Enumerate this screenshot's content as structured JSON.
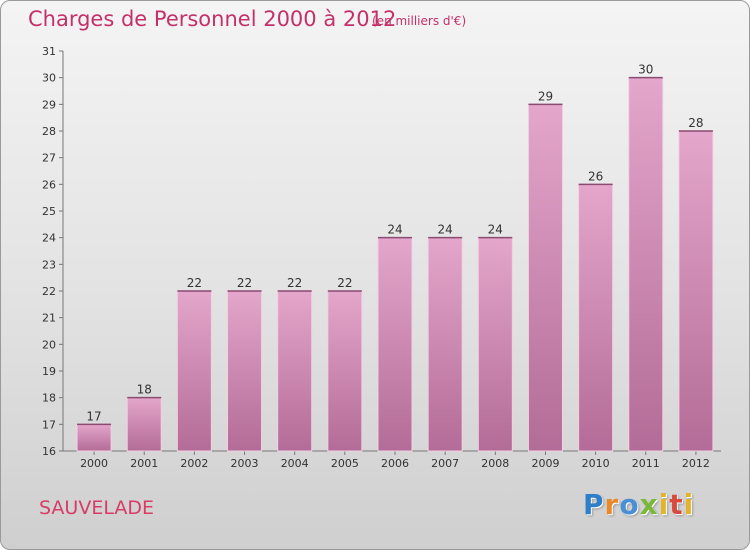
{
  "header": {
    "title": "Charges de Personnel 2000 à 2012",
    "subtitle": "(en milliers d'€)"
  },
  "footer": {
    "commune": "SAUVELADE",
    "logo_text": "Proxiti"
  },
  "colors": {
    "title": "#c4306a",
    "bar_light": "#e4a6cb",
    "bar_dark": "#b36c97",
    "axis": "#777777"
  },
  "chart_data": {
    "type": "bar",
    "categories": [
      "2000",
      "2001",
      "2002",
      "2003",
      "2004",
      "2005",
      "2006",
      "2007",
      "2008",
      "2009",
      "2010",
      "2011",
      "2012"
    ],
    "values": [
      17,
      18,
      22,
      22,
      22,
      22,
      24,
      24,
      24,
      29,
      26,
      30,
      28
    ],
    "title": "Charges de Personnel 2000 à 2012",
    "subtitle": "(en milliers d'€)",
    "ylim": [
      16,
      31
    ],
    "yticks": [
      16,
      17,
      18,
      19,
      20,
      21,
      22,
      23,
      24,
      25,
      26,
      27,
      28,
      29,
      30,
      31
    ],
    "grid": false,
    "legend": "none"
  }
}
